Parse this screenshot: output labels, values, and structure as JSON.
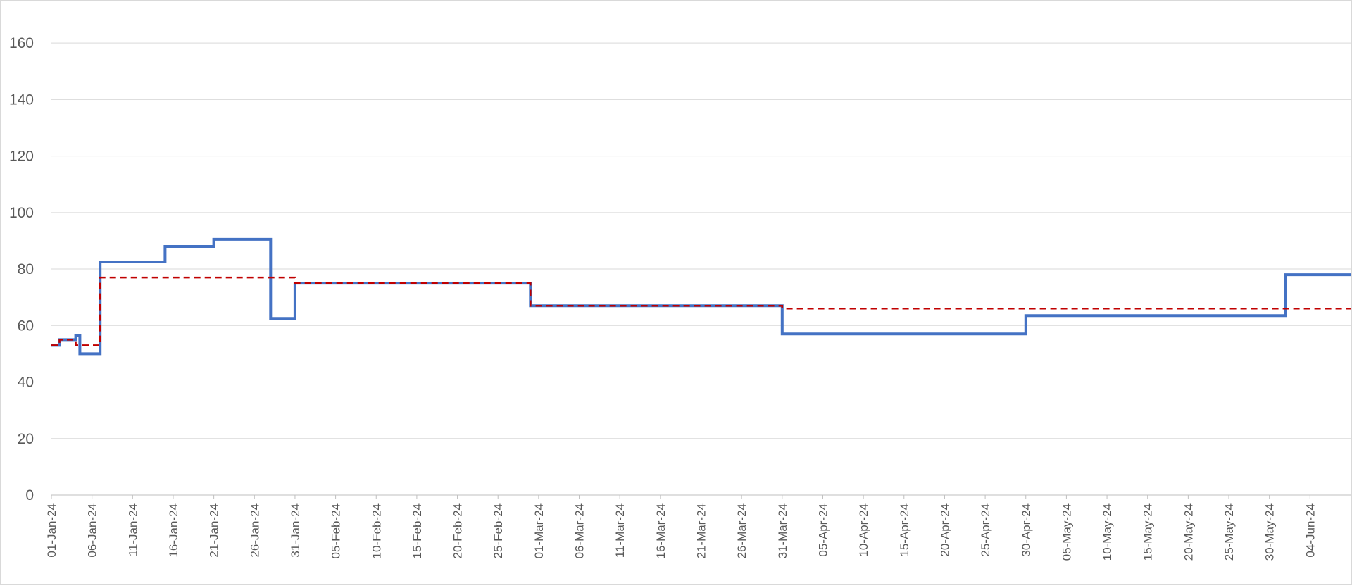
{
  "chart_data": {
    "type": "line",
    "title": "",
    "xlabel": "",
    "ylabel": "",
    "ylim": [
      0,
      170
    ],
    "yticks": [
      0,
      20,
      40,
      60,
      80,
      100,
      120,
      140,
      160
    ],
    "xlim": [
      "2024-01-01",
      "2024-06-09"
    ],
    "xtick_labels": [
      "01-Jan-24",
      "06-Jan-24",
      "11-Jan-24",
      "16-Jan-24",
      "21-Jan-24",
      "26-Jan-24",
      "31-Jan-24",
      "05-Feb-24",
      "10-Feb-24",
      "15-Feb-24",
      "20-Feb-24",
      "25-Feb-24",
      "01-Mar-24",
      "06-Mar-24",
      "11-Mar-24",
      "16-Mar-24",
      "21-Mar-24",
      "26-Mar-24",
      "31-Mar-24",
      "05-Apr-24",
      "10-Apr-24",
      "15-Apr-24",
      "20-Apr-24",
      "25-Apr-24",
      "30-Apr-24",
      "05-May-24",
      "10-May-24",
      "15-May-24",
      "20-May-24",
      "25-May-24",
      "30-May-24",
      "04-Jun-24"
    ],
    "grid": "horizontal",
    "legend": "none",
    "series": [
      {
        "style": "step-solid",
        "color": "#4472C4",
        "points": [
          {
            "x": "2024-01-01",
            "y": 53
          },
          {
            "x": "2024-01-02",
            "y": 55
          },
          {
            "x": "2024-01-04",
            "y": 56.5
          },
          {
            "x": "2024-01-04.5",
            "y": 50
          },
          {
            "x": "2024-01-07",
            "y": 82.5
          },
          {
            "x": "2024-01-15",
            "y": 88
          },
          {
            "x": "2024-01-21",
            "y": 90.5
          },
          {
            "x": "2024-01-28",
            "y": 62.5
          },
          {
            "x": "2024-01-31",
            "y": 75
          },
          {
            "x": "2024-02-29",
            "y": 67
          },
          {
            "x": "2024-03-31",
            "y": 57
          },
          {
            "x": "2024-04-30",
            "y": 63.5
          },
          {
            "x": "2024-06-01",
            "y": 78
          },
          {
            "x": "2024-06-09",
            "y": 78
          }
        ]
      },
      {
        "style": "step-dashed",
        "color": "#C00000",
        "points": [
          {
            "x": "2024-01-01",
            "y": 53
          },
          {
            "x": "2024-01-02",
            "y": 55
          },
          {
            "x": "2024-01-04",
            "y": 53
          },
          {
            "x": "2024-01-07",
            "y": 77
          },
          {
            "x": "2024-01-31",
            "y": 75
          },
          {
            "x": "2024-02-29",
            "y": 67
          },
          {
            "x": "2024-03-31",
            "y": 66
          },
          {
            "x": "2024-04-30",
            "y": 66
          },
          {
            "x": "2024-06-01",
            "y": 66
          },
          {
            "x": "2024-06-09",
            "y": 66
          }
        ]
      }
    ]
  }
}
